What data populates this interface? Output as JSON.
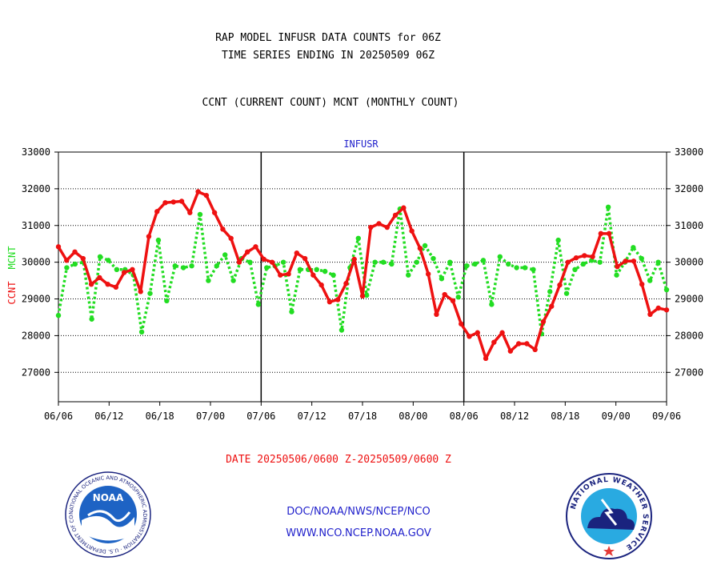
{
  "chart_data": {
    "type": "line",
    "title_lines": [
      "RAP MODEL INFUSR DATA COUNTS for 06Z",
      "TIME SERIES ENDING IN 20250509 06Z"
    ],
    "subtitle": "CCNT (CURRENT COUNT) MCNT (MONTHLY COUNT)",
    "panel_label": "INFUSR",
    "ylabel_left": "CCNT",
    "ylabel_right": "MCNT",
    "ylim": [
      26200,
      33000
    ],
    "yticks": [
      27000,
      28000,
      29000,
      30000,
      31000,
      32000,
      33000
    ],
    "ytick_labels": [
      "27000",
      "28000",
      "29000",
      "30000",
      "31000",
      "32000",
      "33000"
    ],
    "xlim": [
      0,
      120
    ],
    "xticks": [
      0,
      10,
      20,
      30,
      40,
      50,
      60,
      70,
      80,
      90,
      100,
      110,
      120
    ],
    "xtick_labels": [
      "06/06",
      "06/12",
      "06/18",
      "07/00",
      "07/06",
      "07/12",
      "07/18",
      "08/00",
      "08/06",
      "08/12",
      "08/18",
      "09/00",
      "09/06"
    ],
    "panel_dividers": [
      40,
      80
    ],
    "grid": "horizontal dotted",
    "series": [
      {
        "name": "CCNT",
        "color": "#ee1111",
        "style": "solid",
        "values": [
          30420,
          30050,
          30280,
          30100,
          29400,
          29580,
          29400,
          29320,
          29720,
          29800,
          29200,
          30700,
          31380,
          31620,
          31640,
          31660,
          31350,
          31920,
          31820,
          31350,
          30900,
          30650,
          30000,
          30280,
          30420,
          30080,
          30000,
          29650,
          29680,
          30250,
          30100,
          29650,
          29380,
          28920,
          28980,
          29420,
          30080,
          29080,
          30950,
          31050,
          30950,
          31280,
          31480,
          30850,
          30380,
          29680,
          28580,
          29120,
          28950,
          28320,
          27980,
          28080,
          27380,
          27820,
          28080,
          27580,
          27780,
          27780,
          27620,
          28380,
          28800,
          29380,
          30000,
          30120,
          30180,
          30150,
          30780,
          30780,
          29880,
          30030,
          30030,
          29400,
          28580,
          28750,
          28700
        ]
      },
      {
        "name": "MCNT",
        "color": "#22dd22",
        "style": "dotted",
        "values": [
          28550,
          29850,
          29950,
          30000,
          28450,
          30150,
          30050,
          29800,
          29800,
          29650,
          28100,
          29150,
          30600,
          28950,
          29900,
          29850,
          29900,
          31300,
          29500,
          29900,
          30200,
          29500,
          30100,
          30000,
          28850,
          29850,
          29900,
          30000,
          28650,
          29800,
          29800,
          29800,
          29750,
          29650,
          28150,
          29850,
          30650,
          29100,
          30000,
          30000,
          29950,
          31450,
          29650,
          30000,
          30450,
          30100,
          29550,
          30000,
          29050,
          29900,
          29950,
          30050,
          28850,
          30150,
          29950,
          29850,
          29850,
          29800,
          28050,
          29200,
          30600,
          29150,
          29800,
          29950,
          30050,
          30000,
          31500,
          29650,
          30000,
          30400,
          30100,
          29500,
          30000,
          29250
        ]
      }
    ]
  },
  "footer": {
    "date_range": "DATE 20250506/0600 Z-20250509/0600 Z",
    "org_path": "DOC/NOAA/NWS/NCEP/NCO",
    "website": "WWW.NCO.NCEP.NOAA.GOV"
  },
  "logos": {
    "noaa": {
      "inner_text": "NOAA",
      "ring_text": "NATIONAL OCEANIC AND ATMOSPHERIC ADMINISTRATION · U.S. DEPARTMENT OF COMMERCE"
    },
    "nws": {
      "ring_text": "NATIONAL WEATHER SERVICE"
    }
  },
  "colors": {
    "title": "#000000",
    "date": "#ee1111",
    "links": "#2222cc",
    "panel_label": "#2222cc"
  }
}
